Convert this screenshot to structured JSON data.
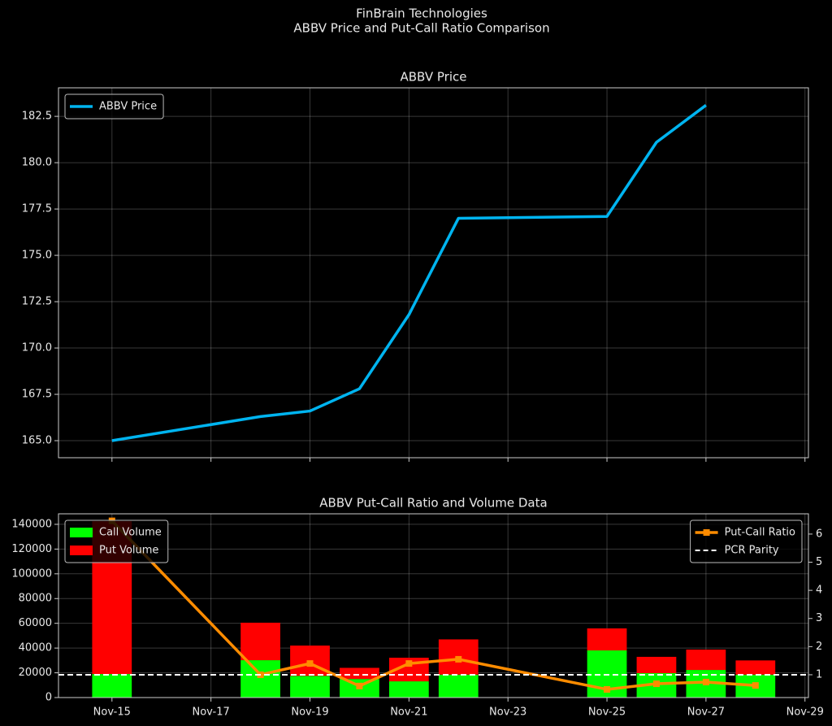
{
  "header": {
    "title": "FinBrain Technologies",
    "subtitle": "ABBV Price and Put-Call Ratio Comparison"
  },
  "chart_data": [
    {
      "type": "line",
      "title": "ABBV Price",
      "x": [
        15,
        18,
        19,
        20,
        21,
        22,
        25,
        26,
        27
      ],
      "series": [
        {
          "name": "ABBV Price",
          "color": "#00b4f0",
          "values": [
            165.0,
            166.3,
            166.6,
            167.8,
            171.8,
            177.0,
            177.1,
            181.1,
            183.1
          ]
        }
      ],
      "xlim": [
        13.92,
        29.07
      ],
      "xticks": [
        15,
        17,
        19,
        21,
        23,
        25,
        27,
        29
      ],
      "xtick_labels": false,
      "ylim": [
        164.08,
        184.04
      ],
      "yticks": [
        {
          "value": 165,
          "label": "165.0"
        },
        167.5,
        {
          "value": 170,
          "label": "170.0"
        },
        172.5,
        {
          "value": 175,
          "label": "175.0"
        },
        177.5,
        {
          "value": 180,
          "label": "180.0"
        },
        182.5
      ],
      "grid": true,
      "legend": "upper left"
    },
    {
      "type": "bar",
      "title": "ABBV Put-Call Ratio and Volume Data",
      "stacked": true,
      "x": [
        15,
        18,
        19,
        20,
        21,
        22,
        25,
        26,
        27,
        28
      ],
      "series": [
        {
          "name": "Call Volume",
          "color": "#00ff00",
          "values": [
            19000,
            30200,
            17500,
            15000,
            13100,
            18500,
            38100,
            19700,
            22300,
            18500
          ]
        },
        {
          "name": "Put Volume",
          "color": "#ff0000",
          "values": [
            123500,
            30300,
            24500,
            9000,
            19100,
            28500,
            17800,
            13200,
            16500,
            11500
          ]
        },
        {
          "name": "Put-Call Ratio",
          "color": "#ff8c00",
          "type": "line",
          "marker": "square",
          "axis": "y2",
          "values": [
            6.47,
            1.0,
            1.4,
            0.6,
            1.4,
            1.55,
            0.48,
            0.68,
            0.74,
            0.62
          ]
        }
      ],
      "hlines": [
        {
          "name": "PCR Parity",
          "y": 1,
          "axis": "y2",
          "color": "#ffffff",
          "style": "dashed"
        }
      ],
      "xlim": [
        13.92,
        29.07
      ],
      "xticks": [
        {
          "value": 15,
          "label": "Nov-15"
        },
        {
          "value": 17,
          "label": "Nov-17"
        },
        {
          "value": 19,
          "label": "Nov-19"
        },
        {
          "value": 21,
          "label": "Nov-21"
        },
        {
          "value": 23,
          "label": "Nov-23"
        },
        {
          "value": 25,
          "label": "Nov-25"
        },
        {
          "value": 27,
          "label": "Nov-27"
        },
        {
          "value": 29,
          "label": "Nov-29"
        }
      ],
      "xtick_labels": true,
      "ylim": [
        0,
        148500
      ],
      "yticks": [
        0,
        20000,
        40000,
        60000,
        80000,
        100000,
        120000,
        140000
      ],
      "y2lim": [
        0.19,
        6.72
      ],
      "y2ticks": [
        1,
        2,
        3,
        4,
        5,
        6
      ],
      "grid": true,
      "legend": "upper left",
      "legend_y2": "upper right"
    }
  ]
}
